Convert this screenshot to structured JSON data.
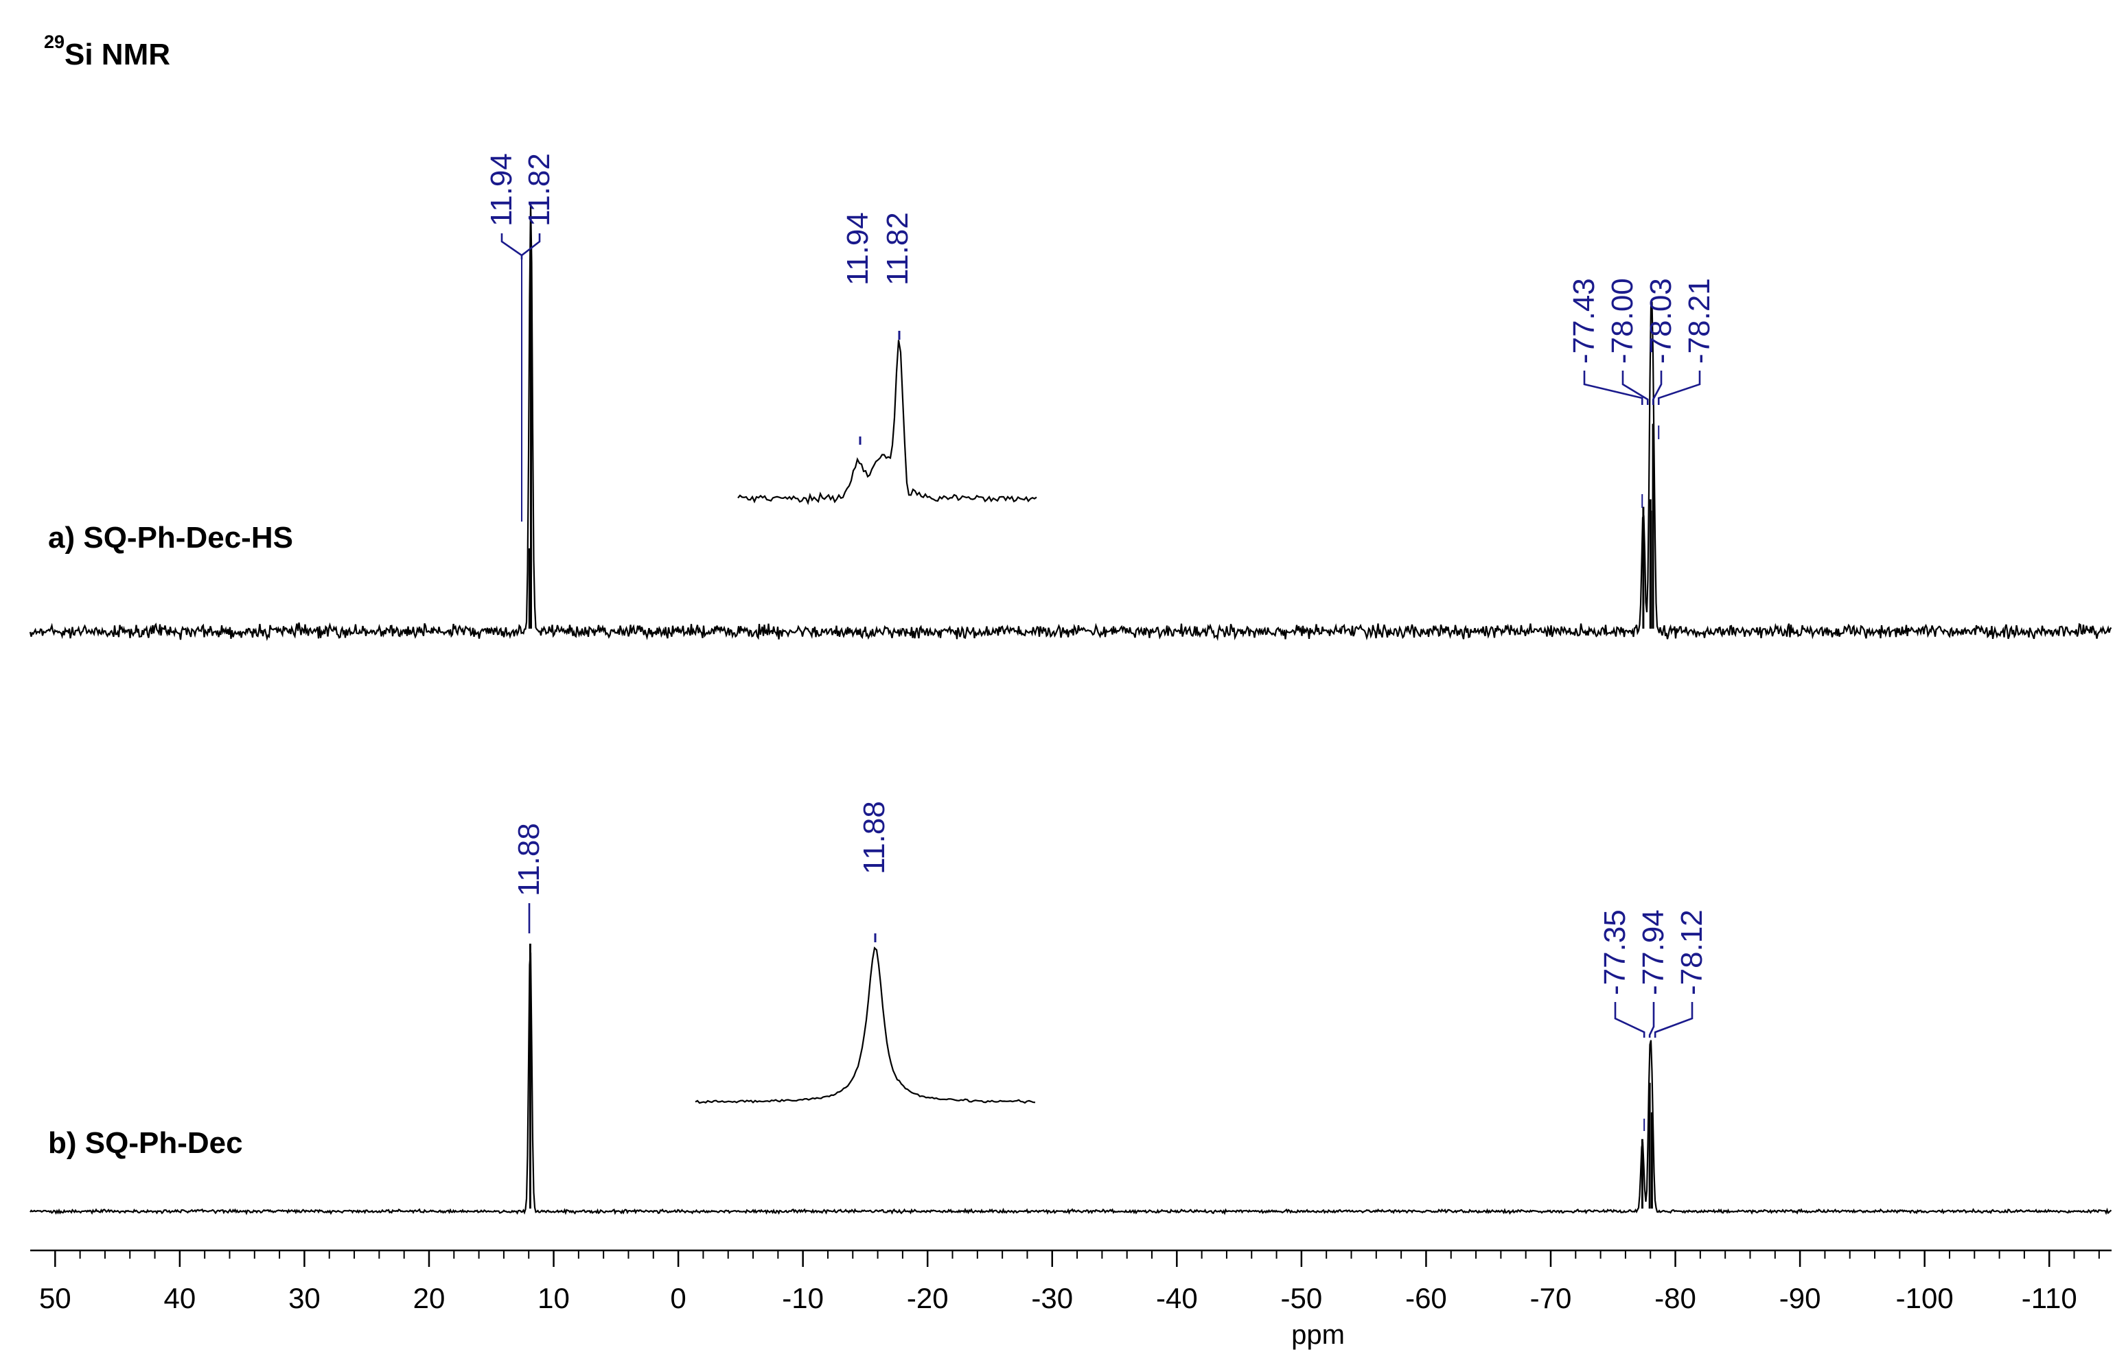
{
  "chart_data": {
    "type": "line",
    "title_prefix": "29",
    "title": "Si NMR",
    "xlabel": "ppm",
    "xlim": [
      52,
      -115
    ],
    "x_reversed": true,
    "xticks": [
      50,
      40,
      30,
      20,
      10,
      0,
      -10,
      -20,
      -30,
      -40,
      -50,
      -60,
      -70,
      -80,
      -90,
      -100,
      -110
    ],
    "grid": false,
    "series": [
      {
        "name": "a) SQ-Ph-Dec-HS",
        "peaks": [
          {
            "ppm": 11.94,
            "height": 0.22
          },
          {
            "ppm": 11.82,
            "height": 1.0
          },
          {
            "ppm": -77.43,
            "height": 0.33
          },
          {
            "ppm": -78.0,
            "height": 0.35
          },
          {
            "ppm": -78.03,
            "height": 0.32
          },
          {
            "ppm": -78.21,
            "height": 0.55
          }
        ],
        "peak_labels": [
          "11.94",
          "11.82",
          "-77.43",
          "-78.00",
          "-78.03",
          "-78.21"
        ],
        "inset_labels": [
          "11.94",
          "11.82"
        ]
      },
      {
        "name": "b) SQ-Ph-Dec",
        "peaks": [
          {
            "ppm": 11.88,
            "height": 1.0
          },
          {
            "ppm": -77.35,
            "height": 0.27
          },
          {
            "ppm": -77.94,
            "height": 0.48
          },
          {
            "ppm": -78.12,
            "height": 0.37
          }
        ],
        "peak_labels": [
          "11.88",
          "-77.35",
          "-77.94",
          "-78.12"
        ],
        "inset_labels": [
          "11.88"
        ]
      }
    ]
  },
  "colors": {
    "spectrum": "#000000",
    "peak_label": "#1a1a8c",
    "axis": "#000000"
  }
}
